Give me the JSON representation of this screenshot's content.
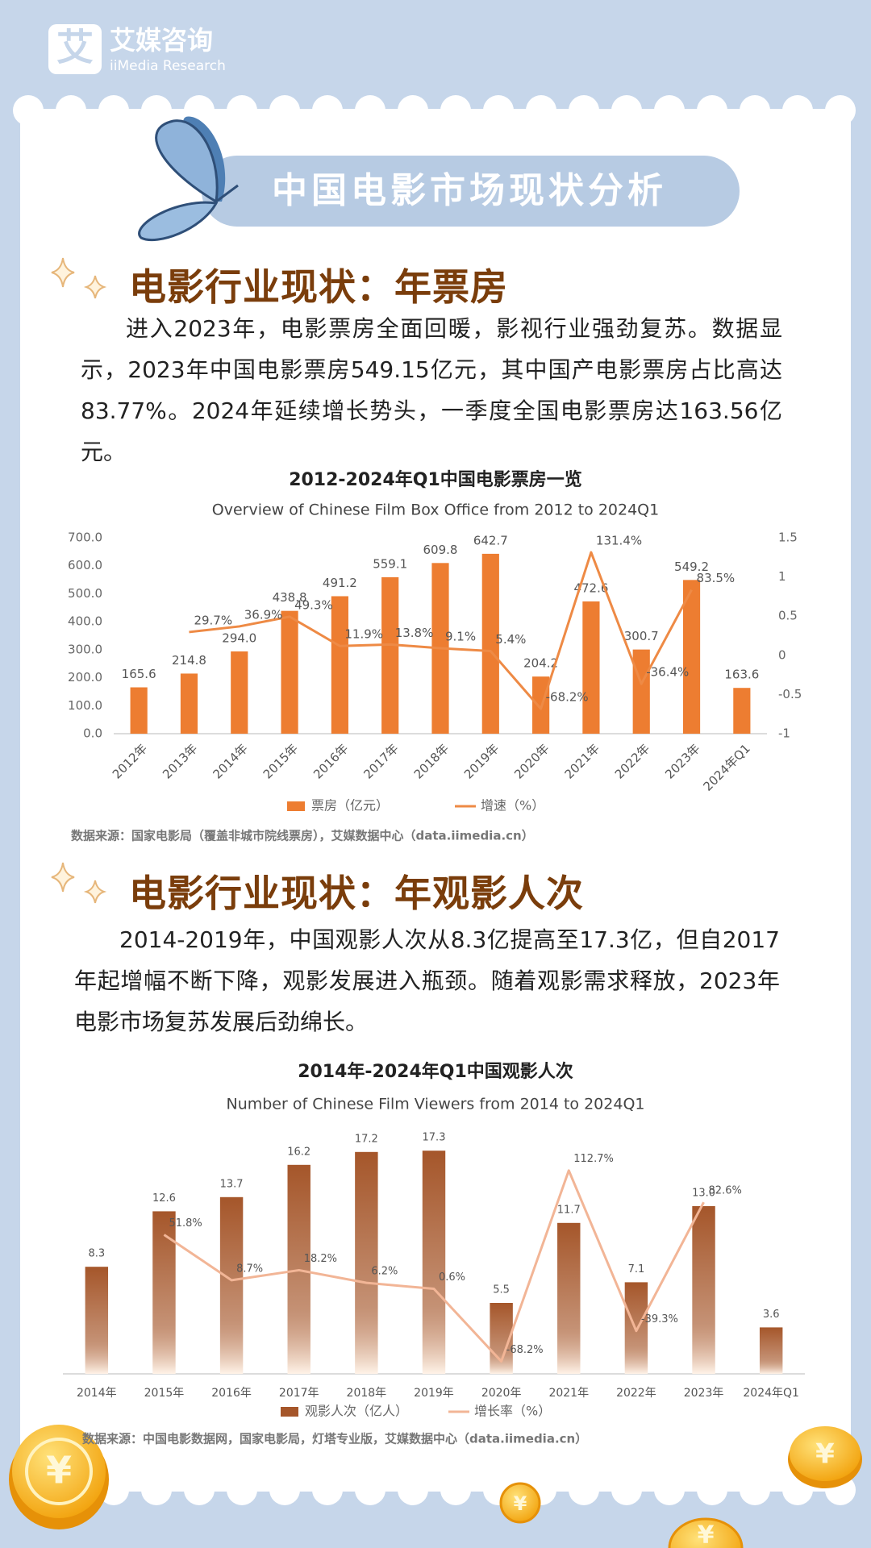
{
  "logo": {
    "name": "艾媒咨询",
    "subname": "iiMedia Research",
    "mark": "艾"
  },
  "banner": "中国电影市场现状分析",
  "sections": [
    {
      "heading": "电影行业现状：年票房",
      "text": "进入2023年，电影票房全面回暖，影视行业强劲复苏。数据显示，2023年中国电影票房549.15亿元，其中国产电影票房占比高达83.77%。2024年延续增长势头，一季度全国电影票房达163.56亿元。"
    },
    {
      "heading": "电影行业现状：年观影人次",
      "text": "2014-2019年，中国观影人次从8.3亿提高至17.3亿，但自2017年起增幅不断下降，观影发展进入瓶颈。随着观影需求释放，2023年电影市场复苏发展后劲绵长。"
    }
  ],
  "coin_symbol": "¥",
  "chart_data": [
    {
      "type": "bar",
      "title": "2012-2024年Q1中国电影票房一览",
      "subtitle": "Overview of Chinese Film Box Office from 2012 to 2024Q1",
      "categories": [
        "2012年",
        "2013年",
        "2014年",
        "2015年",
        "2016年",
        "2017年",
        "2018年",
        "2019年",
        "2020年",
        "2021年",
        "2022年",
        "2023年",
        "2024年Q1"
      ],
      "series": [
        {
          "name": "票房（亿元）",
          "type": "bar",
          "color": "#ed7d31",
          "values": [
            165.6,
            214.8,
            294.0,
            438.8,
            491.2,
            559.1,
            609.8,
            642.7,
            204.2,
            472.6,
            300.7,
            549.2,
            163.6
          ],
          "value_labels": [
            "165.6",
            "214.8",
            "294.0",
            "438.8",
            "491.2",
            "559.1",
            "609.8",
            "642.7",
            "204.2",
            "472.6",
            "300.7",
            "549.2",
            "163.6"
          ]
        },
        {
          "name": "增速（%）",
          "type": "line",
          "axis": "y2",
          "color": "#ee8a45",
          "values": [
            null,
            0.297,
            0.369,
            0.493,
            0.119,
            0.138,
            0.091,
            0.054,
            -0.682,
            1.314,
            -0.364,
            0.835,
            null
          ],
          "value_labels": [
            null,
            "29.7%",
            "36.9%",
            "49.3%",
            "11.9%",
            "13.8%",
            "9.1%",
            "5.4%",
            "-68.2%",
            "131.4%",
            "-36.4%",
            "83.5%",
            null
          ]
        }
      ],
      "ylim": [
        0,
        700
      ],
      "yticks": [
        {
          "value": 0,
          "label": "0.0"
        },
        {
          "value": 100,
          "label": "100.0"
        },
        {
          "value": 200,
          "label": "200.0"
        },
        {
          "value": 300,
          "label": "300.0"
        },
        {
          "value": 400,
          "label": "400.0"
        },
        {
          "value": 500,
          "label": "500.0"
        },
        {
          "value": 600,
          "label": "600.0"
        },
        {
          "value": 700,
          "label": "700.0"
        }
      ],
      "y2lim": [
        -1,
        1.5
      ],
      "y2ticks": [
        -1,
        -0.5,
        0,
        0.5,
        1,
        1.5
      ],
      "legend": "bottom",
      "source": "数据来源：国家电影局（覆盖非城市院线票房），艾媒数据中心（data.iimedia.cn）"
    },
    {
      "type": "bar",
      "title": "2014年-2024年Q1中国观影人次",
      "subtitle": "Number of Chinese Film Viewers from 2014 to 2024Q1",
      "categories": [
        "2014年",
        "2015年",
        "2016年",
        "2017年",
        "2018年",
        "2019年",
        "2020年",
        "2021年",
        "2022年",
        "2023年",
        "2024年Q1"
      ],
      "series": [
        {
          "name": "观影人次（亿人）",
          "type": "bar",
          "color": "#a5562a",
          "values": [
            8.3,
            12.6,
            13.7,
            16.2,
            17.2,
            17.3,
            5.5,
            11.7,
            7.1,
            13.0,
            3.6
          ],
          "value_labels": [
            "8.3",
            "12.6",
            "13.7",
            "16.2",
            "17.2",
            "17.3",
            "5.5",
            "11.7",
            "7.1",
            "13.0",
            "3.6"
          ]
        },
        {
          "name": "增长率（%）",
          "type": "line",
          "axis": "y2",
          "color": "#f2b596",
          "values": [
            null,
            51.8,
            8.7,
            18.2,
            6.2,
            0.6,
            -68.2,
            112.7,
            -39.3,
            82.6,
            null
          ],
          "value_labels": [
            null,
            "51.8%",
            "8.7%",
            "18.2%",
            "6.2%",
            "0.6%",
            "-68.2%",
            "112.7%",
            "-39.3%",
            "82.6%",
            null
          ]
        }
      ],
      "ylim": [
        0,
        18
      ],
      "y2lim": [
        -80,
        140
      ],
      "legend": "bottom",
      "source": "数据来源：中国电影数据网，国家电影局，灯塔专业版，艾媒数据中心（data.iimedia.cn）"
    }
  ]
}
